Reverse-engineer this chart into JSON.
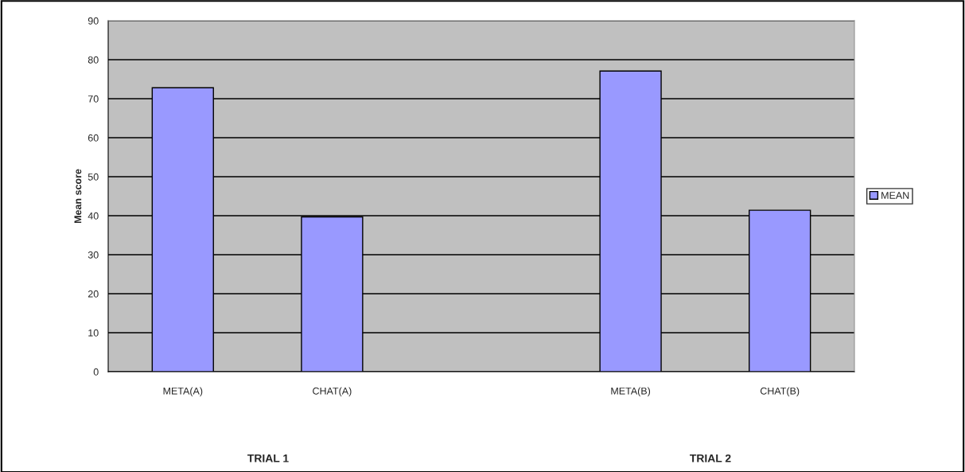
{
  "chart_data": {
    "type": "bar",
    "ylabel": "Mean score",
    "categories": [
      "META(A)",
      "CHAT(A)",
      null,
      "META(B)",
      "CHAT(B)"
    ],
    "series": [
      {
        "name": "MEAN",
        "color": "#9999ff",
        "values": [
          72.8,
          39.7,
          null,
          77.1,
          41.4
        ]
      }
    ],
    "ylim": [
      0,
      90
    ],
    "yticks": [
      0,
      10,
      20,
      30,
      40,
      50,
      60,
      70,
      80,
      90
    ],
    "grid": "y",
    "legend": "right",
    "annotations": [
      "TRIAL 1",
      "TRIAL 2"
    ]
  }
}
